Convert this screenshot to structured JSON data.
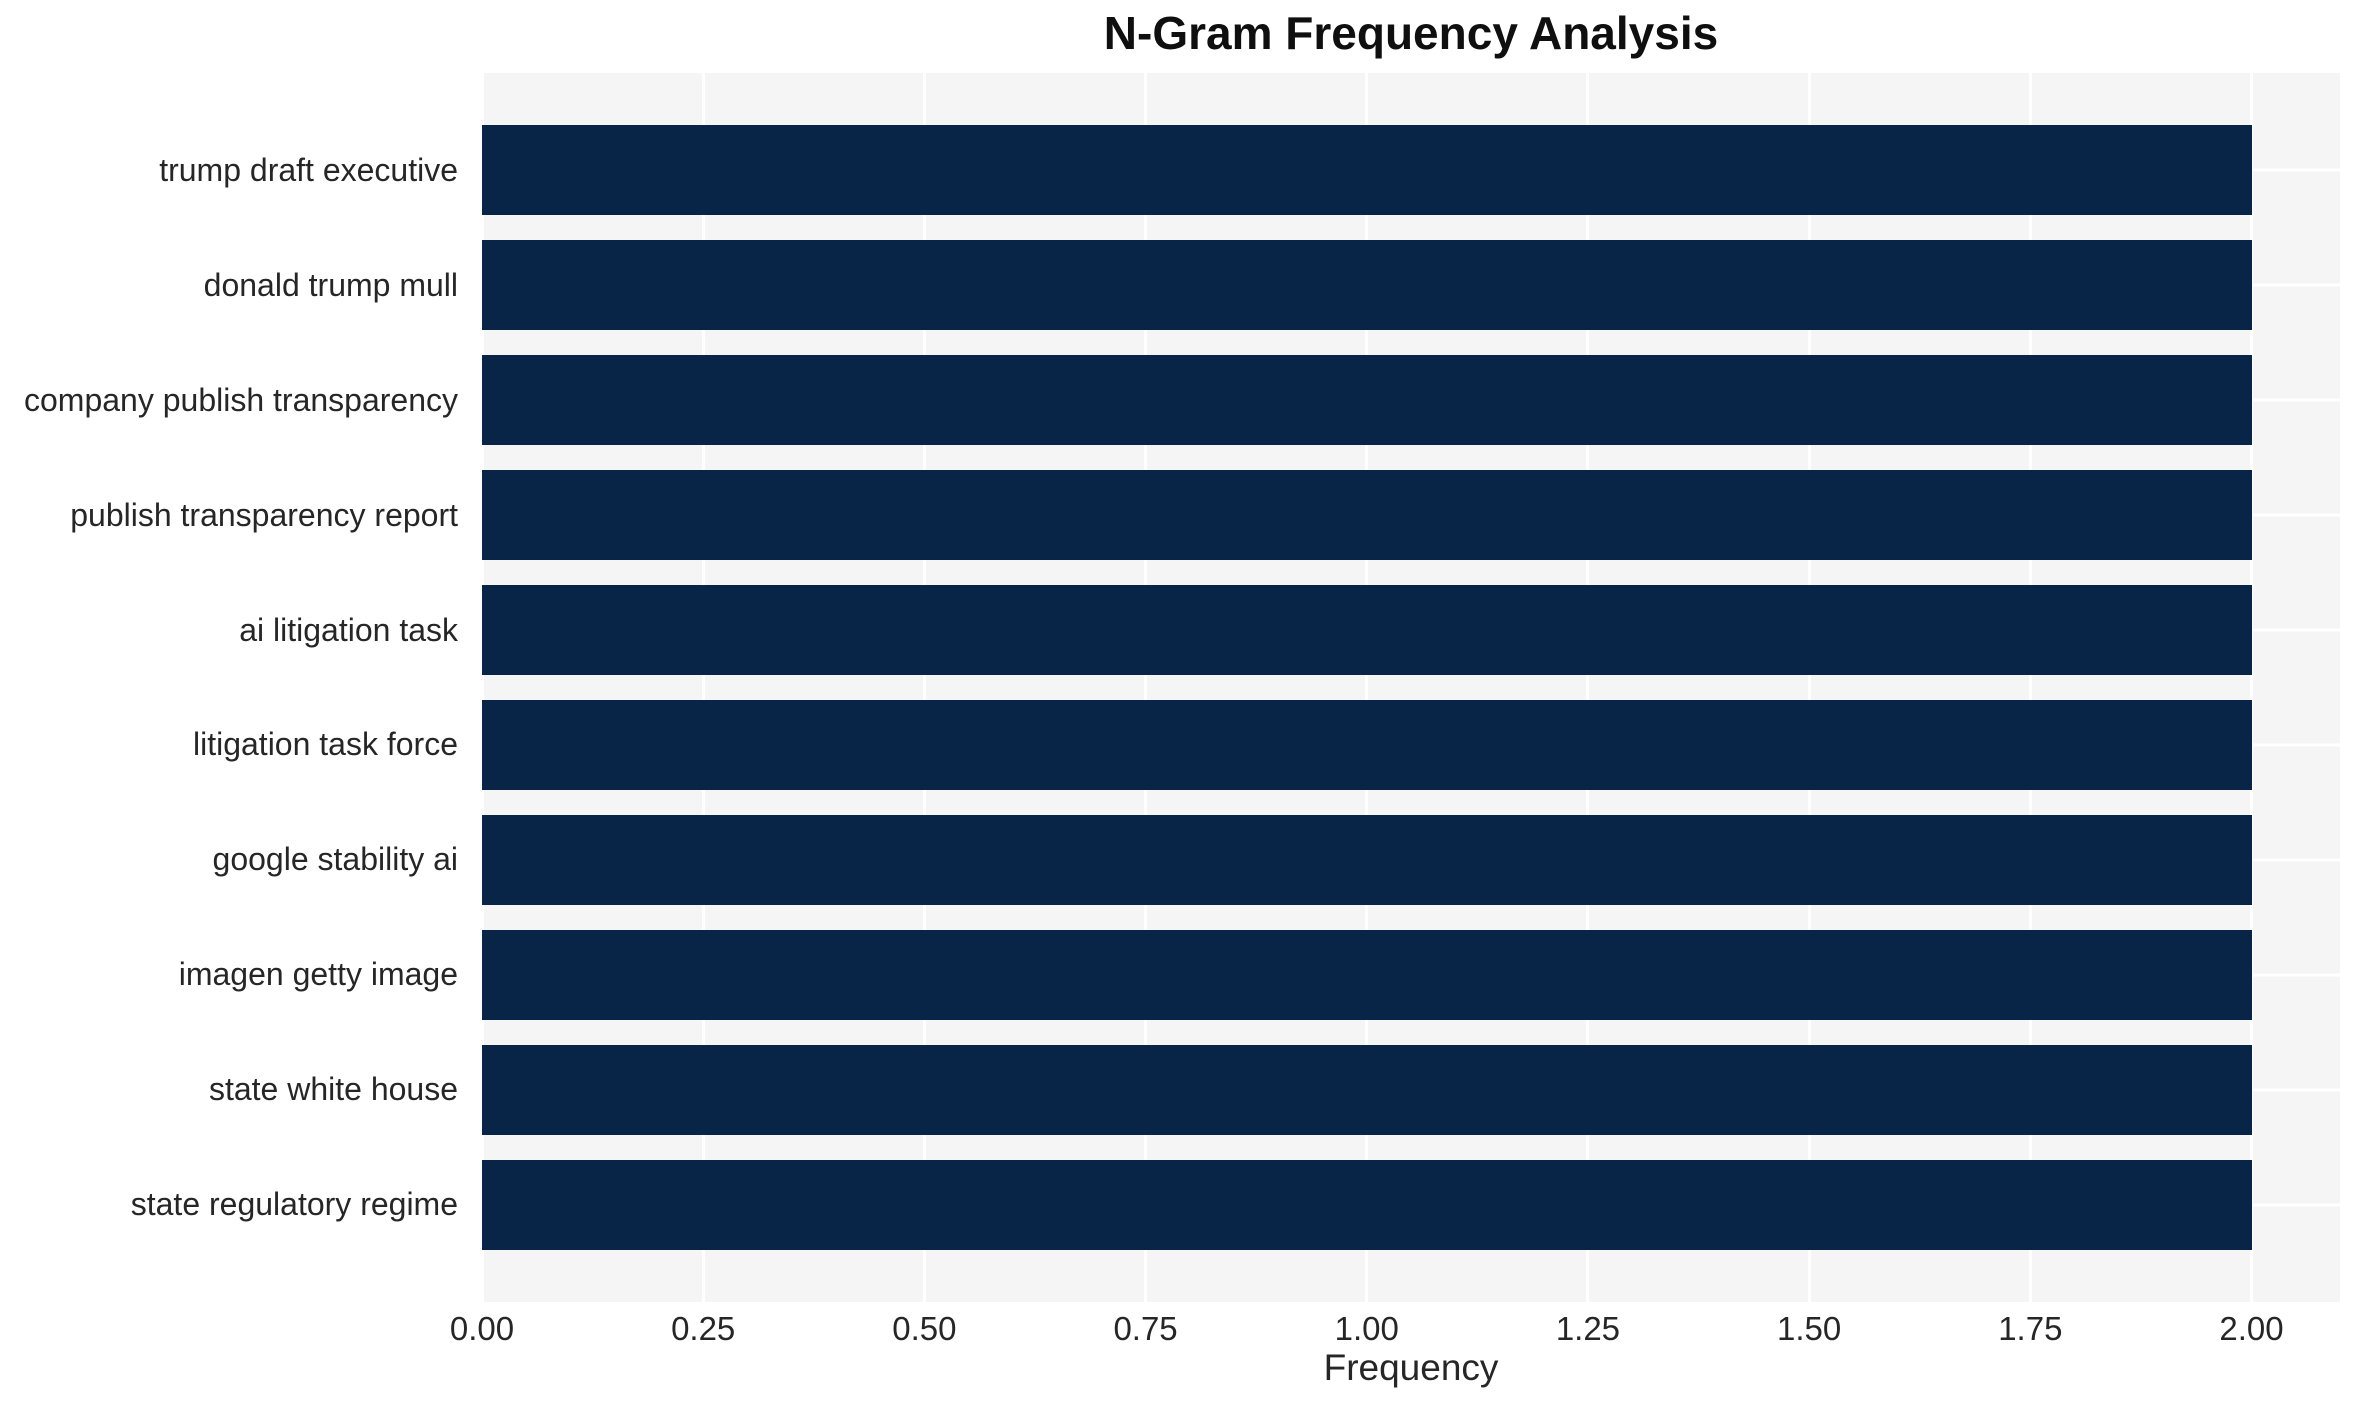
{
  "chart_data": {
    "type": "bar",
    "orientation": "horizontal",
    "title": "N-Gram Frequency Analysis",
    "xlabel": "Frequency",
    "ylabel": "",
    "categories": [
      "trump draft executive",
      "donald trump mull",
      "company publish transparency",
      "publish transparency report",
      "ai litigation task",
      "litigation task force",
      "google stability ai",
      "imagen getty image",
      "state white house",
      "state regulatory regime"
    ],
    "values": [
      2,
      2,
      2,
      2,
      2,
      2,
      2,
      2,
      2,
      2
    ],
    "xlim": [
      0,
      2.1
    ],
    "xtick_values": [
      0.0,
      0.25,
      0.5,
      0.75,
      1.0,
      1.25,
      1.5,
      1.75,
      2.0
    ],
    "xtick_labels": [
      "0.00",
      "0.25",
      "0.50",
      "0.75",
      "1.00",
      "1.25",
      "1.50",
      "1.75",
      "2.00"
    ],
    "grid": true,
    "legend_position": "none",
    "colors": {
      "bar": "#082548",
      "plot_background": "#f5f5f6",
      "gridline": "#ffffff",
      "tick_text": "#262626",
      "title_text": "#0f0f0f",
      "page_background": "#ffffff"
    }
  }
}
